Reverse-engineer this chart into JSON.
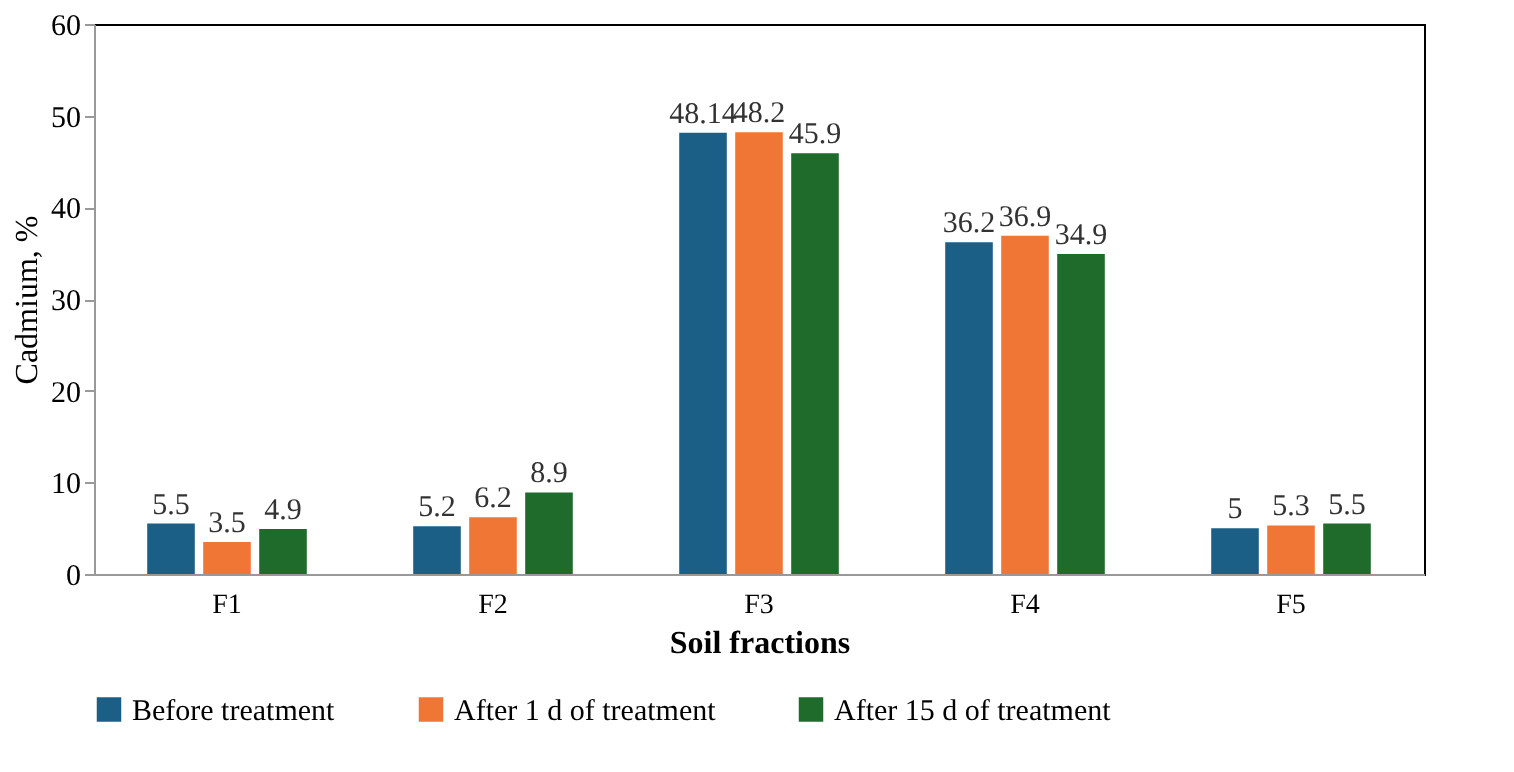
{
  "chart_data": {
    "type": "bar",
    "xlabel": "Soil fractions",
    "ylabel": "Cadmium, %",
    "categories": [
      "F1",
      "F2",
      "F3",
      "F4",
      "F5"
    ],
    "series": [
      {
        "name": "Before treatment",
        "color": "#1b5f86",
        "values": [
          5.5,
          5.2,
          48.14,
          36.2,
          5
        ]
      },
      {
        "name": "After 1 d of treatment",
        "color": "#ef7634",
        "values": [
          3.5,
          6.2,
          48.2,
          36.9,
          5.3
        ]
      },
      {
        "name": "After 15 d of treatment",
        "color": "#1e6b2c",
        "values": [
          4.9,
          8.9,
          45.9,
          34.9,
          5.5
        ]
      }
    ],
    "ylim": [
      0,
      60
    ],
    "yticks": [
      0,
      10,
      20,
      30,
      40,
      50,
      60
    ],
    "grid": false,
    "legend": "bottom",
    "data_labels": true
  }
}
